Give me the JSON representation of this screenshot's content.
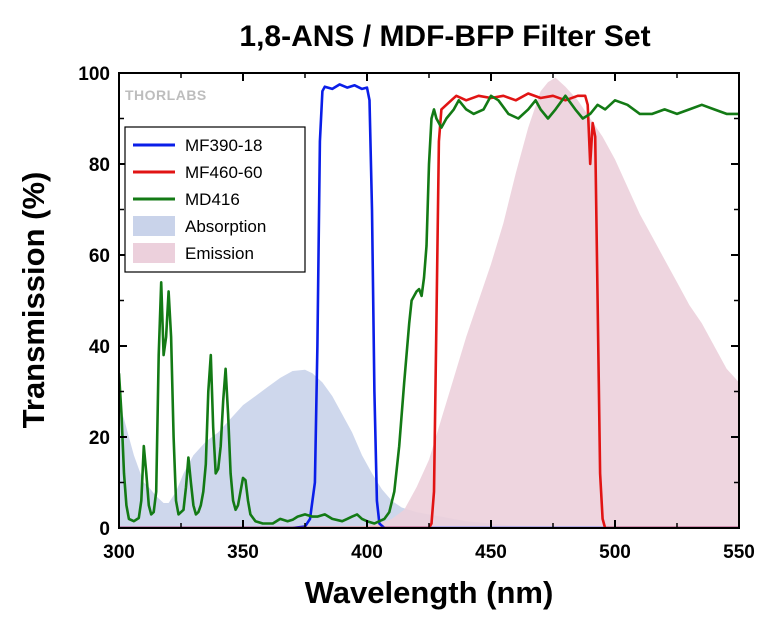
{
  "chart_data": {
    "type": "line",
    "title": "1,8-ANS / MDF-BFP Filter Set",
    "xlabel": "Wavelength (nm)",
    "ylabel": "Transmission (%)",
    "xlim": [
      300,
      550
    ],
    "ylim": [
      0,
      100
    ],
    "xticks": [
      300,
      350,
      400,
      450,
      500,
      550
    ],
    "yticks": [
      0,
      20,
      40,
      60,
      80,
      100
    ],
    "watermark": "THORLABS",
    "legend_position": "upper-left",
    "series": [
      {
        "name": "Absorption",
        "kind": "area",
        "color": "#c9d3ea",
        "points": [
          [
            300,
            27
          ],
          [
            302,
            24
          ],
          [
            304,
            20
          ],
          [
            306,
            16
          ],
          [
            308,
            13
          ],
          [
            310,
            10
          ],
          [
            312,
            9
          ],
          [
            315,
            7
          ],
          [
            318,
            5.5
          ],
          [
            320,
            5.5
          ],
          [
            323,
            8
          ],
          [
            326,
            12
          ],
          [
            330,
            16
          ],
          [
            335,
            19
          ],
          [
            340,
            21
          ],
          [
            345,
            24
          ],
          [
            350,
            27
          ],
          [
            355,
            29
          ],
          [
            360,
            31
          ],
          [
            365,
            33
          ],
          [
            370,
            34.5
          ],
          [
            375,
            34.8
          ],
          [
            378,
            34
          ],
          [
            382,
            32
          ],
          [
            386,
            29
          ],
          [
            390,
            25
          ],
          [
            394,
            21
          ],
          [
            398,
            16
          ],
          [
            402,
            12
          ],
          [
            406,
            8.5
          ],
          [
            410,
            6
          ],
          [
            414,
            4.5
          ],
          [
            420,
            3.5
          ],
          [
            425,
            3
          ],
          [
            430,
            2.5
          ],
          [
            440,
            1.5
          ],
          [
            450,
            1
          ],
          [
            460,
            0.5
          ],
          [
            470,
            0.3
          ],
          [
            480,
            0.1
          ],
          [
            490,
            0
          ],
          [
            550,
            0
          ]
        ]
      },
      {
        "name": "Emission",
        "kind": "area",
        "color": "#ecd0dc",
        "points": [
          [
            395,
            0
          ],
          [
            405,
            1
          ],
          [
            410,
            2
          ],
          [
            415,
            4
          ],
          [
            420,
            9
          ],
          [
            425,
            15
          ],
          [
            430,
            24
          ],
          [
            435,
            33
          ],
          [
            440,
            42
          ],
          [
            445,
            50
          ],
          [
            450,
            58
          ],
          [
            455,
            67
          ],
          [
            460,
            78
          ],
          [
            465,
            88
          ],
          [
            470,
            96
          ],
          [
            473,
            98
          ],
          [
            476,
            99
          ],
          [
            480,
            97
          ],
          [
            485,
            94
          ],
          [
            490,
            90
          ],
          [
            495,
            86
          ],
          [
            500,
            81
          ],
          [
            505,
            75
          ],
          [
            510,
            69
          ],
          [
            515,
            64
          ],
          [
            520,
            59
          ],
          [
            525,
            54
          ],
          [
            530,
            49
          ],
          [
            535,
            45
          ],
          [
            540,
            40
          ],
          [
            545,
            35
          ],
          [
            550,
            32
          ]
        ]
      },
      {
        "name": "MF390-18",
        "kind": "line",
        "color": "#0a1ee8",
        "points": [
          [
            300,
            0
          ],
          [
            370,
            0
          ],
          [
            375,
            0.3
          ],
          [
            377,
            2
          ],
          [
            379,
            10
          ],
          [
            380,
            40
          ],
          [
            381,
            85
          ],
          [
            382,
            96
          ],
          [
            383,
            97
          ],
          [
            386,
            96.5
          ],
          [
            389,
            97.5
          ],
          [
            392,
            96.8
          ],
          [
            395,
            97.3
          ],
          [
            398,
            96.5
          ],
          [
            400,
            96.8
          ],
          [
            401,
            94
          ],
          [
            402,
            70
          ],
          [
            403,
            30
          ],
          [
            404,
            6
          ],
          [
            405,
            1
          ],
          [
            407,
            0
          ],
          [
            550,
            0
          ]
        ]
      },
      {
        "name": "MF460-60",
        "kind": "line",
        "color": "#e11414",
        "points": [
          [
            300,
            0
          ],
          [
            425,
            0
          ],
          [
            426,
            1
          ],
          [
            427,
            8
          ],
          [
            428,
            45
          ],
          [
            429,
            85
          ],
          [
            430,
            92
          ],
          [
            432,
            93
          ],
          [
            434,
            94
          ],
          [
            436,
            95
          ],
          [
            440,
            94
          ],
          [
            445,
            95
          ],
          [
            450,
            94.5
          ],
          [
            455,
            95
          ],
          [
            460,
            94
          ],
          [
            465,
            95.5
          ],
          [
            470,
            94.5
          ],
          [
            475,
            95
          ],
          [
            480,
            94
          ],
          [
            485,
            95
          ],
          [
            488,
            95
          ],
          [
            489,
            93
          ],
          [
            490,
            80
          ],
          [
            491,
            89
          ],
          [
            492,
            86
          ],
          [
            493,
            50
          ],
          [
            494,
            12
          ],
          [
            495,
            2
          ],
          [
            496,
            0
          ],
          [
            550,
            0
          ]
        ]
      },
      {
        "name": "MD416",
        "kind": "line",
        "color": "#137a15",
        "points": [
          [
            300,
            34
          ],
          [
            301,
            25
          ],
          [
            302,
            12
          ],
          [
            303,
            5
          ],
          [
            304,
            2
          ],
          [
            306,
            1.5
          ],
          [
            308,
            2.2
          ],
          [
            309,
            6
          ],
          [
            310,
            18
          ],
          [
            311,
            12
          ],
          [
            312,
            5
          ],
          [
            313,
            3
          ],
          [
            314,
            3.5
          ],
          [
            315,
            8
          ],
          [
            316,
            38
          ],
          [
            317,
            54
          ],
          [
            318,
            38
          ],
          [
            319,
            42
          ],
          [
            320,
            52
          ],
          [
            321,
            42
          ],
          [
            322,
            20
          ],
          [
            323,
            6
          ],
          [
            324,
            3
          ],
          [
            326,
            4
          ],
          [
            327,
            9
          ],
          [
            328,
            15.5
          ],
          [
            329,
            10
          ],
          [
            330,
            5
          ],
          [
            331,
            3
          ],
          [
            332,
            3.5
          ],
          [
            333,
            5
          ],
          [
            334,
            8
          ],
          [
            335,
            14
          ],
          [
            336,
            30
          ],
          [
            337,
            38
          ],
          [
            338,
            22
          ],
          [
            339,
            12
          ],
          [
            340,
            13
          ],
          [
            341,
            18
          ],
          [
            342,
            28
          ],
          [
            343,
            35
          ],
          [
            344,
            25
          ],
          [
            345,
            12
          ],
          [
            346,
            6
          ],
          [
            347,
            4
          ],
          [
            348,
            5
          ],
          [
            349,
            8
          ],
          [
            350,
            11
          ],
          [
            351,
            10.5
          ],
          [
            352,
            6
          ],
          [
            353,
            3
          ],
          [
            355,
            1.5
          ],
          [
            358,
            1
          ],
          [
            362,
            1
          ],
          [
            365,
            2
          ],
          [
            368,
            1.5
          ],
          [
            370,
            1.8
          ],
          [
            372,
            2.5
          ],
          [
            375,
            3
          ],
          [
            378,
            2.5
          ],
          [
            380,
            2.5
          ],
          [
            383,
            3
          ],
          [
            386,
            2
          ],
          [
            390,
            1.5
          ],
          [
            392,
            2
          ],
          [
            394,
            2.5
          ],
          [
            396,
            3
          ],
          [
            398,
            2
          ],
          [
            400,
            1.5
          ],
          [
            403,
            1
          ],
          [
            405,
            1.5
          ],
          [
            407,
            2
          ],
          [
            409,
            3.5
          ],
          [
            411,
            8
          ],
          [
            413,
            18
          ],
          [
            415,
            32
          ],
          [
            417,
            45
          ],
          [
            418,
            50
          ],
          [
            420,
            52
          ],
          [
            421,
            52.5
          ],
          [
            422,
            51
          ],
          [
            423,
            55
          ],
          [
            424,
            62
          ],
          [
            425,
            80
          ],
          [
            426,
            90
          ],
          [
            427,
            92
          ],
          [
            428,
            90
          ],
          [
            430,
            88
          ],
          [
            432,
            90
          ],
          [
            435,
            92
          ],
          [
            437,
            94
          ],
          [
            440,
            92
          ],
          [
            443,
            91
          ],
          [
            447,
            92
          ],
          [
            450,
            95
          ],
          [
            453,
            94
          ],
          [
            457,
            91
          ],
          [
            461,
            90
          ],
          [
            465,
            92
          ],
          [
            468,
            94
          ],
          [
            470,
            92
          ],
          [
            473,
            90
          ],
          [
            476,
            92
          ],
          [
            480,
            95
          ],
          [
            484,
            92
          ],
          [
            487,
            90
          ],
          [
            490,
            91
          ],
          [
            493,
            93
          ],
          [
            496,
            92
          ],
          [
            500,
            94
          ],
          [
            505,
            93
          ],
          [
            510,
            91
          ],
          [
            515,
            91
          ],
          [
            520,
            92
          ],
          [
            525,
            91
          ],
          [
            530,
            92
          ],
          [
            535,
            93
          ],
          [
            540,
            92
          ],
          [
            545,
            91
          ],
          [
            550,
            91
          ]
        ]
      }
    ]
  }
}
